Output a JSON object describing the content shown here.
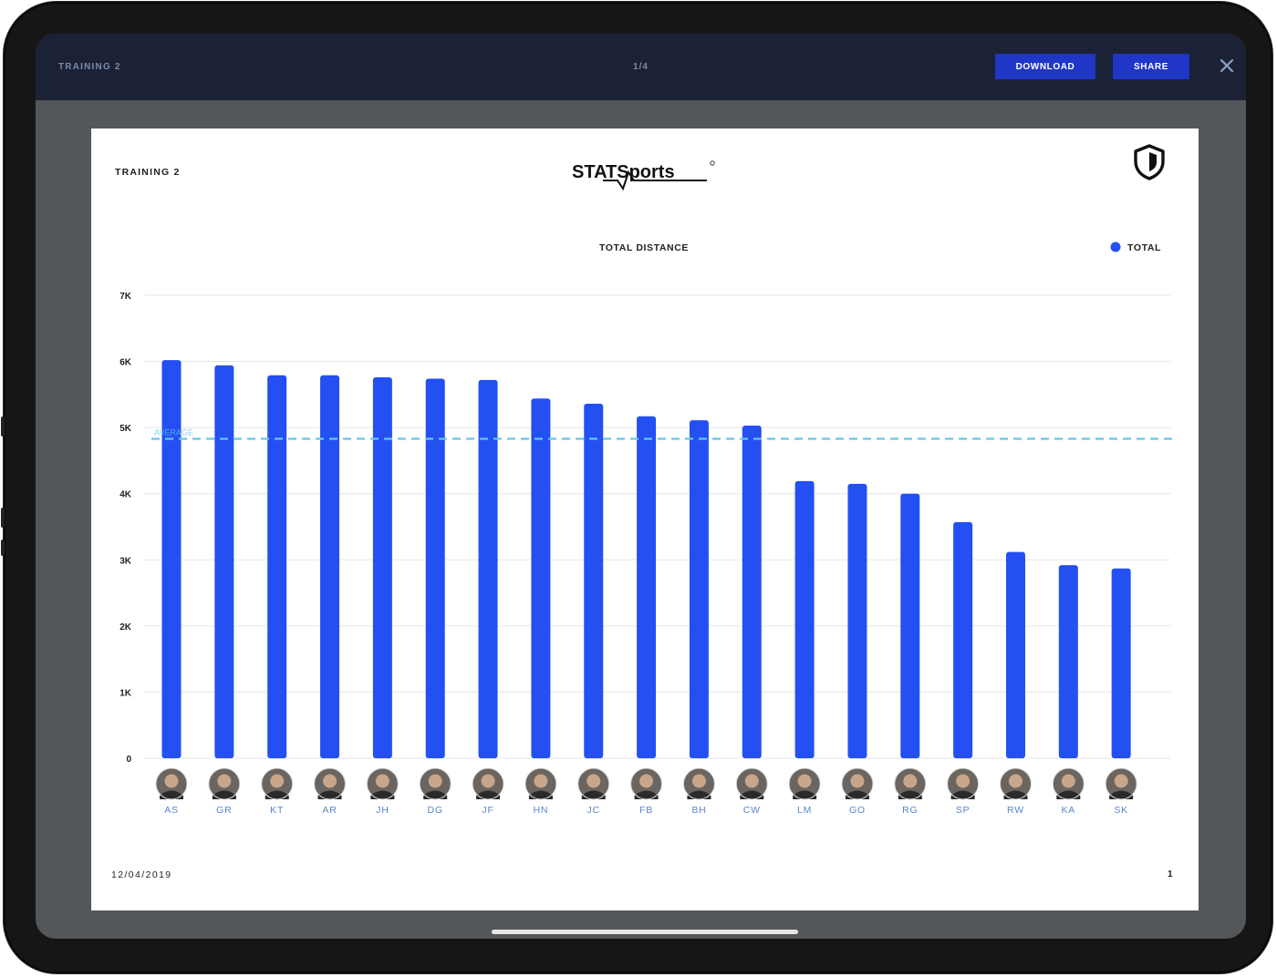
{
  "topbar": {
    "title": "TRAINING 2",
    "page_indicator": "1/4",
    "download_label": "DOWNLOAD",
    "share_label": "SHARE"
  },
  "sheet": {
    "title": "TRAINING 2",
    "brand": "STATSports",
    "date": "12/04/2019",
    "page_number": "1"
  },
  "colors": {
    "bar": "#2450f2",
    "average_line": "#68c5e6",
    "grid": "#e4e6ee",
    "accent_button": "#1f36c7"
  },
  "chart_data": {
    "type": "bar",
    "title": "TOTAL DISTANCE",
    "legend": {
      "position": "top-right",
      "entries": [
        "TOTAL"
      ]
    },
    "categories": [
      "AS",
      "GR",
      "KT",
      "AR",
      "JH",
      "DG",
      "JF",
      "HN",
      "JC",
      "FB",
      "BH",
      "CW",
      "LM",
      "GO",
      "RG",
      "SP",
      "RW",
      "KA",
      "SK"
    ],
    "series": [
      {
        "name": "TOTAL",
        "values": [
          6020,
          5940,
          5790,
          5790,
          5760,
          5740,
          5720,
          5440,
          5360,
          5170,
          5110,
          5030,
          4190,
          4150,
          4000,
          3570,
          3120,
          2920,
          2870
        ]
      }
    ],
    "average": 4830,
    "average_label": "AVERAGE",
    "ylim": [
      0,
      7000
    ],
    "y_ticks": [
      {
        "value": 0,
        "label": "0"
      },
      {
        "value": 1000,
        "label": "1K"
      },
      {
        "value": 2000,
        "label": "2K"
      },
      {
        "value": 3000,
        "label": "3K"
      },
      {
        "value": 4000,
        "label": "4K"
      },
      {
        "value": 5000,
        "label": "5K"
      },
      {
        "value": 6000,
        "label": "6K"
      },
      {
        "value": 7000,
        "label": "7K"
      }
    ],
    "grid": true,
    "x_markers": "player-avatar-icon"
  }
}
